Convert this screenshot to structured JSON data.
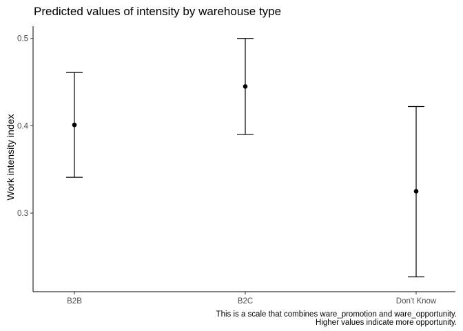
{
  "chart_data": {
    "type": "scatter",
    "title": "Predicted values of intensity by warehouse type",
    "xlabel": "",
    "ylabel": "Work intensity index",
    "categories": [
      "B2B",
      "B2C",
      "Don't Know"
    ],
    "series": [
      {
        "values": [
          0.401,
          0.445,
          0.325
        ],
        "lower": [
          0.341,
          0.39,
          0.227
        ],
        "upper": [
          0.461,
          0.5,
          0.422
        ]
      }
    ],
    "yticks": [
      0.3,
      0.4,
      0.5
    ],
    "ytick_labels": [
      "0.3",
      "0.4",
      "0.5"
    ],
    "ylim": [
      0.21,
      0.514
    ],
    "grid": false,
    "legend": "none",
    "caption": [
      "This is a scale that combines ware_promotion and ware_opportunity.",
      "Higher values indicate more opportunity."
    ],
    "colors": {
      "marks": "#000000",
      "tick_text": "#4d4d4d"
    }
  }
}
